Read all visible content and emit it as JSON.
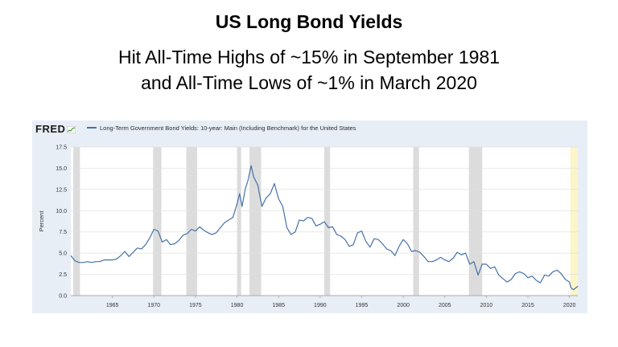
{
  "slide": {
    "title": "US Long Bond Yields",
    "subtitle_line1": "Hit All-Time Highs of ~15% in September 1981",
    "subtitle_line2": "and All-Time Lows of ~1% in March 2020"
  },
  "fred": {
    "logo_text": "FRED"
  },
  "colors": {
    "line": "#4572a7",
    "recession": "#dcdcdc",
    "projection": "#fbf5c8",
    "plot_bg": "#ffffff",
    "frame_bg": "#e8eef5"
  },
  "chart_data": {
    "type": "line",
    "title": "",
    "xlabel": "",
    "ylabel": "Percent",
    "legend": "top-left",
    "grid": true,
    "xlim": [
      1960,
      2021
    ],
    "ylim": [
      0,
      17.5
    ],
    "yticks": [
      0.0,
      2.5,
      5.0,
      7.5,
      10.0,
      12.5,
      15.0,
      17.5
    ],
    "ytick_labels": [
      "0.0",
      "2.5",
      "5.0",
      "7.5",
      "10.0",
      "12.5",
      "15.0",
      "17.5"
    ],
    "xticks": [
      1965,
      1970,
      1975,
      1980,
      1985,
      1990,
      1995,
      2000,
      2005,
      2010,
      2015,
      2020
    ],
    "xtick_labels": [
      "1965",
      "1970",
      "1975",
      "1980",
      "1985",
      "1990",
      "1995",
      "2000",
      "2005",
      "2010",
      "2015",
      "2020"
    ],
    "recessions": [
      [
        1960.3,
        1961.1
      ],
      [
        1969.9,
        1970.9
      ],
      [
        1973.9,
        1975.2
      ],
      [
        1980.0,
        1980.5
      ],
      [
        1981.5,
        1982.9
      ],
      [
        1990.5,
        1991.2
      ],
      [
        2001.2,
        2001.9
      ],
      [
        2007.9,
        2009.5
      ],
      [
        2020.1,
        2021.0
      ]
    ],
    "series": [
      {
        "name": "Long-Term Government Bond Yields: 10-year: Main (Including Benchmark) for the United States",
        "x": [
          1960.0,
          1960.5,
          1961.0,
          1961.5,
          1962.0,
          1962.5,
          1963.0,
          1963.5,
          1964.0,
          1964.5,
          1965.0,
          1965.5,
          1966.0,
          1966.5,
          1967.0,
          1967.5,
          1968.0,
          1968.5,
          1969.0,
          1969.5,
          1970.0,
          1970.5,
          1971.0,
          1971.5,
          1972.0,
          1972.5,
          1973.0,
          1973.5,
          1974.0,
          1974.5,
          1975.0,
          1975.5,
          1976.0,
          1976.5,
          1977.0,
          1977.5,
          1978.0,
          1978.5,
          1979.0,
          1979.5,
          1980.0,
          1980.3,
          1980.6,
          1981.0,
          1981.3,
          1981.7,
          1982.0,
          1982.5,
          1983.0,
          1983.5,
          1984.0,
          1984.5,
          1985.0,
          1985.5,
          1986.0,
          1986.5,
          1987.0,
          1987.5,
          1988.0,
          1988.5,
          1989.0,
          1989.5,
          1990.0,
          1990.5,
          1991.0,
          1991.5,
          1992.0,
          1992.5,
          1993.0,
          1993.5,
          1994.0,
          1994.5,
          1995.0,
          1995.5,
          1996.0,
          1996.5,
          1997.0,
          1997.5,
          1998.0,
          1998.5,
          1999.0,
          1999.5,
          2000.0,
          2000.5,
          2001.0,
          2001.5,
          2002.0,
          2002.5,
          2003.0,
          2003.5,
          2004.0,
          2004.5,
          2005.0,
          2005.5,
          2006.0,
          2006.5,
          2007.0,
          2007.5,
          2008.0,
          2008.5,
          2009.0,
          2009.5,
          2010.0,
          2010.5,
          2011.0,
          2011.5,
          2012.0,
          2012.5,
          2013.0,
          2013.5,
          2014.0,
          2014.5,
          2015.0,
          2015.5,
          2016.0,
          2016.5,
          2017.0,
          2017.5,
          2018.0,
          2018.5,
          2019.0,
          2019.5,
          2020.0,
          2020.2,
          2020.5,
          2021.0
        ],
        "y": [
          4.7,
          4.1,
          3.9,
          3.9,
          4.0,
          3.9,
          4.0,
          4.0,
          4.2,
          4.2,
          4.2,
          4.3,
          4.7,
          5.2,
          4.6,
          5.1,
          5.6,
          5.5,
          6.0,
          6.8,
          7.8,
          7.6,
          6.3,
          6.6,
          6.0,
          6.1,
          6.5,
          7.1,
          7.3,
          7.8,
          7.6,
          8.1,
          7.7,
          7.4,
          7.2,
          7.4,
          8.0,
          8.6,
          8.9,
          9.2,
          10.8,
          12.0,
          10.5,
          12.6,
          13.5,
          15.3,
          14.0,
          13.0,
          10.5,
          11.5,
          12.0,
          13.2,
          11.4,
          10.5,
          8.0,
          7.2,
          7.5,
          8.9,
          8.8,
          9.2,
          9.1,
          8.2,
          8.4,
          8.7,
          8.0,
          8.1,
          7.2,
          7.0,
          6.6,
          5.8,
          6.0,
          7.4,
          7.6,
          6.4,
          5.7,
          6.7,
          6.6,
          6.1,
          5.5,
          5.3,
          4.7,
          5.8,
          6.6,
          6.1,
          5.2,
          5.3,
          5.1,
          4.6,
          4.0,
          4.0,
          4.2,
          4.5,
          4.2,
          4.0,
          4.4,
          5.1,
          4.8,
          5.0,
          3.7,
          4.0,
          2.4,
          3.7,
          3.7,
          3.2,
          3.4,
          2.4,
          2.0,
          1.6,
          1.9,
          2.6,
          2.8,
          2.6,
          2.1,
          2.3,
          1.8,
          1.5,
          2.4,
          2.3,
          2.8,
          3.0,
          2.6,
          1.9,
          1.6,
          0.9,
          0.7,
          1.1
        ]
      }
    ]
  }
}
